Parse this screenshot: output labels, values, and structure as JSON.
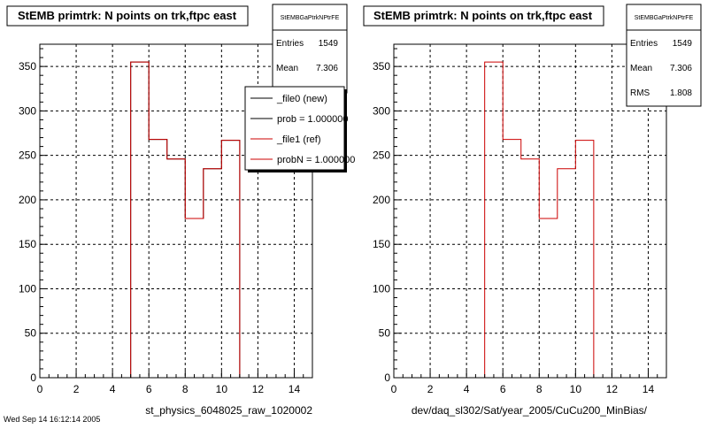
{
  "colors": {
    "ref": "#cc0000",
    "new": "#000000",
    "frame": "#000000",
    "grid": "#000000"
  },
  "chart_data": [
    {
      "type": "histogram",
      "title": "StEMB primtrk: N points on trk,ftpc east",
      "xlabel": "st_physics_6048025_raw_1020002",
      "xlim": [
        0,
        15
      ],
      "ylim": [
        0,
        375
      ],
      "xticks": [
        "0",
        "2",
        "4",
        "6",
        "8",
        "10",
        "12",
        "14"
      ],
      "yticks": [
        "0",
        "50",
        "100",
        "150",
        "200",
        "250",
        "300",
        "350"
      ],
      "grid": true,
      "bin_edges": [
        0,
        1,
        2,
        3,
        4,
        5,
        6,
        7,
        8,
        9,
        10,
        11,
        12,
        13,
        14,
        15
      ],
      "series": [
        {
          "name": "_file0 (new)",
          "values": [
            0,
            0,
            0,
            0,
            0,
            355,
            268,
            246,
            179,
            235,
            267,
            0,
            0,
            0,
            0
          ],
          "color": "#000000"
        },
        {
          "name": "_file1 (ref)",
          "values": [
            0,
            0,
            0,
            0,
            0,
            355,
            268,
            246,
            179,
            235,
            267,
            0,
            0,
            0,
            0
          ],
          "color": "#cc0000"
        }
      ],
      "stats": {
        "name": "StEMBGaPtrkNPtrFE",
        "entries_label": "Entries",
        "entries": "1549",
        "mean_label": "Mean",
        "mean": "7.306"
      },
      "legend": {
        "position": "top-right",
        "entries": [
          {
            "label": "_file0 (new)",
            "color": "#000000"
          },
          {
            "label": "prob = 1.000000",
            "color": "#000000"
          },
          {
            "label": "_file1 (ref)",
            "color": "#cc0000"
          },
          {
            "label": "probN = 1.000000",
            "color": "#cc0000"
          }
        ]
      }
    },
    {
      "type": "histogram",
      "title": "StEMB primtrk: N points on trk,ftpc east",
      "xlabel": "dev/daq_sl302/Sat/year_2005/CuCu200_MinBias/",
      "xlim": [
        0,
        15
      ],
      "ylim": [
        0,
        375
      ],
      "xticks": [
        "0",
        "2",
        "4",
        "6",
        "8",
        "10",
        "12",
        "14"
      ],
      "yticks": [
        "0",
        "50",
        "100",
        "150",
        "200",
        "250",
        "300",
        "350"
      ],
      "grid": true,
      "bin_edges": [
        0,
        1,
        2,
        3,
        4,
        5,
        6,
        7,
        8,
        9,
        10,
        11,
        12,
        13,
        14,
        15
      ],
      "series": [
        {
          "name": "_file1 (ref)",
          "values": [
            0,
            0,
            0,
            0,
            0,
            355,
            268,
            246,
            179,
            235,
            267,
            0,
            0,
            0,
            0
          ],
          "color": "#cc0000"
        }
      ],
      "stats": {
        "name": "StEMBGaPtrkNPtrFE",
        "entries_label": "Entries",
        "entries": "1549",
        "mean_label": "Mean",
        "mean": "7.306",
        "rms_label": "RMS",
        "rms": "1.808"
      }
    }
  ],
  "footer_text": "Wed Sep 14 16:12:14 2005"
}
